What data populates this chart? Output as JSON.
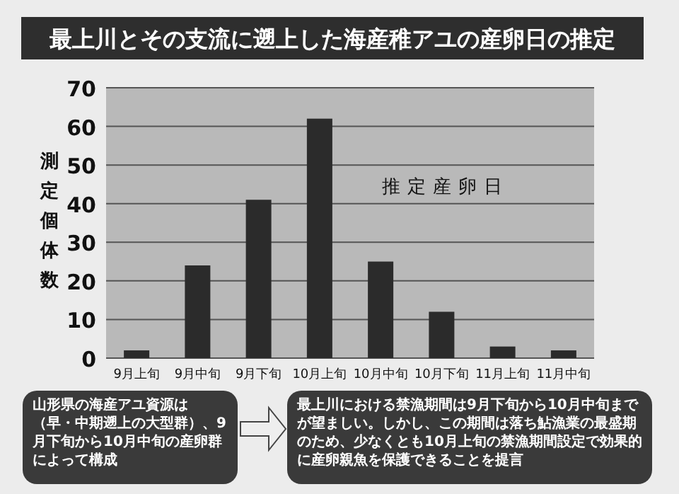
{
  "chart_data": {
    "type": "bar",
    "title": "最上川とその支流に遡上した海産稚アユの産卵日の推定",
    "ylabel": "測定個体数",
    "categories": [
      "9月上旬",
      "9月中旬",
      "9月下旬",
      "10月上旬",
      "10月中旬",
      "10月下旬",
      "11月上旬",
      "11月中旬"
    ],
    "values": [
      2,
      24,
      41,
      62,
      25,
      12,
      3,
      2
    ],
    "color": "#2b2b2b",
    "ylim": [
      0,
      70
    ],
    "yticks": [
      0,
      10,
      20,
      30,
      40,
      50,
      60,
      70
    ],
    "grid": "y",
    "annotations": [
      "推定産卵日",
      "山形県の海産アユ資源は（早・中期遡上の大型群）、9月下旬から10月中旬の産卵群によって構成",
      "最上川における禁漁期間は9月下旬から10月中旬までが望ましい。しかし、この期間は落ち鮎漁業の最盛期のため、少なくとも10月上旬の禁漁期間設定で効果的に産卵親魚を保護できることを提言"
    ]
  }
}
